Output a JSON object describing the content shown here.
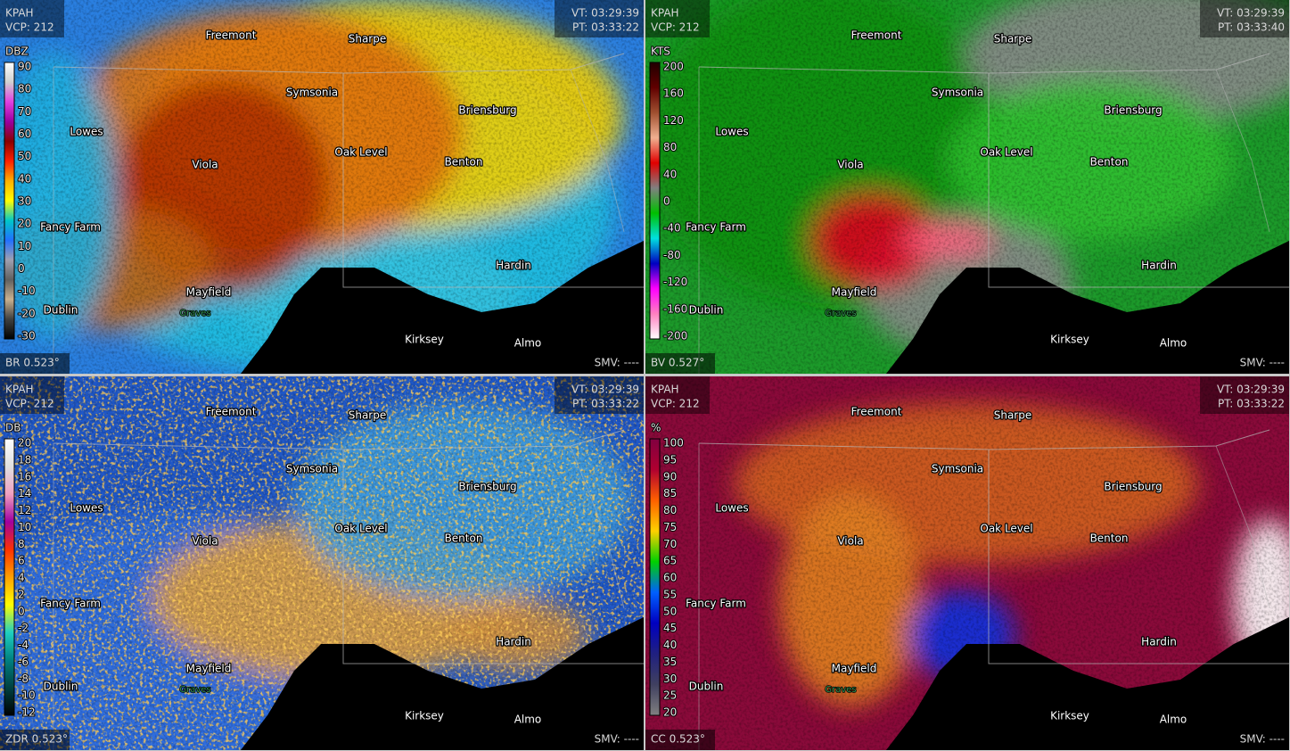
{
  "panels": [
    {
      "station": "KPAH",
      "vcp": "VCP: 212",
      "vt": "VT: 03:29:39",
      "pt": "PT: 03:33:22",
      "unit": "DBZ",
      "scale": [
        "90",
        "80",
        "70",
        "60",
        "50",
        "40",
        "30",
        "20",
        "10",
        "0",
        "-10",
        "-20",
        "-30"
      ],
      "product": "BR 0.523°",
      "smv": "SMV: ----"
    },
    {
      "station": "KPAH",
      "vcp": "VCP: 212",
      "vt": "VT: 03:29:39",
      "pt": "PT: 03:33:40",
      "unit": "KTS",
      "scale": [
        "200",
        "160",
        "120",
        "80",
        "40",
        "0",
        "-40",
        "-80",
        "-120",
        "-160",
        "-200"
      ],
      "product": "BV 0.527°",
      "smv": "SMV: ----"
    },
    {
      "station": "KPAH",
      "vcp": "VCP: 212",
      "vt": "VT: 03:29:39",
      "pt": "PT: 03:33:22",
      "unit": "DB",
      "scale": [
        "20",
        "18",
        "16",
        "14",
        "12",
        "10",
        "8",
        "6",
        "4",
        "2",
        "0",
        "-2",
        "-4",
        "-6",
        "-8",
        "-10",
        "-12"
      ],
      "product": "ZDR 0.523°",
      "smv": "SMV: ----"
    },
    {
      "station": "KPAH",
      "vcp": "VCP: 212",
      "vt": "VT: 03:29:39",
      "pt": "PT: 03:33:22",
      "unit": "%",
      "scale": [
        "100",
        "95",
        "90",
        "85",
        "80",
        "75",
        "70",
        "65",
        "60",
        "55",
        "50",
        "45",
        "40",
        "35",
        "30",
        "25",
        "20"
      ],
      "product": "CC 0.523°",
      "smv": "SMV: ----"
    }
  ],
  "towns": [
    "Freemont",
    "Sharpe",
    "Symsonia",
    "Briensburg",
    "Lowes",
    "Viola",
    "Oak Level",
    "Benton",
    "Fancy Farm",
    "Hardin",
    "Mayfield",
    "Dublin",
    "Kirksey",
    "Almo"
  ],
  "county": "Graves"
}
